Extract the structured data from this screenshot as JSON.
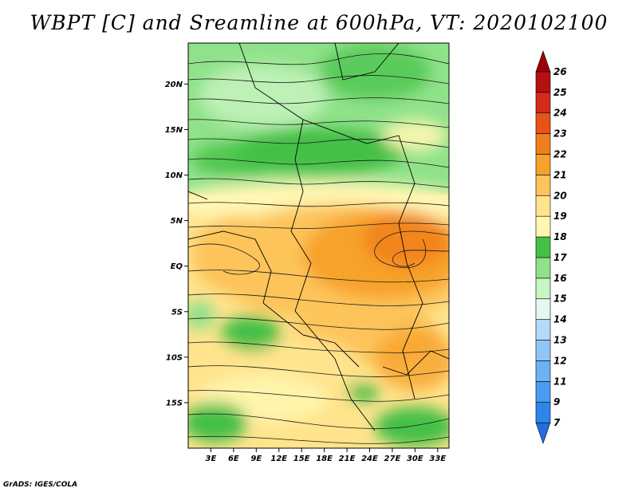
{
  "title": "WBPT [C] and Sreamline at 600hPa, VT: 2020102100",
  "credit": "GrADS: IGES/COLA",
  "map": {
    "lon_labels": [
      "3E",
      "6E",
      "9E",
      "12E",
      "15E",
      "18E",
      "21E",
      "24E",
      "27E",
      "30E",
      "33E"
    ],
    "lat_labels": [
      "20N",
      "15N",
      "10N",
      "5N",
      "EQ",
      "5S",
      "10S",
      "15S"
    ],
    "lon_range": [
      0,
      34.5
    ],
    "lat_range": [
      -20,
      24.5
    ],
    "variable": "WBPT [C]",
    "overlay": "Streamline",
    "level": "600hPa",
    "valid_time": "2020102100"
  },
  "colorbar": {
    "labels": [
      "7",
      "9",
      "11",
      "12",
      "13",
      "14",
      "15",
      "16",
      "17",
      "18",
      "19",
      "20",
      "21",
      "22",
      "23",
      "24",
      "25",
      "26"
    ],
    "colors": [
      "#1e6ee0",
      "#2f86ea",
      "#4a9cf0",
      "#6cb2f4",
      "#8fc6f7",
      "#b4dafa",
      "#e6f8f4",
      "#c8f5c0",
      "#90e28a",
      "#44c046",
      "#fff7b3",
      "#ffe48d",
      "#fdc45a",
      "#f7a22a",
      "#f07e1c",
      "#e75319",
      "#d62a18",
      "#b80f12",
      "#9e0008"
    ]
  }
}
